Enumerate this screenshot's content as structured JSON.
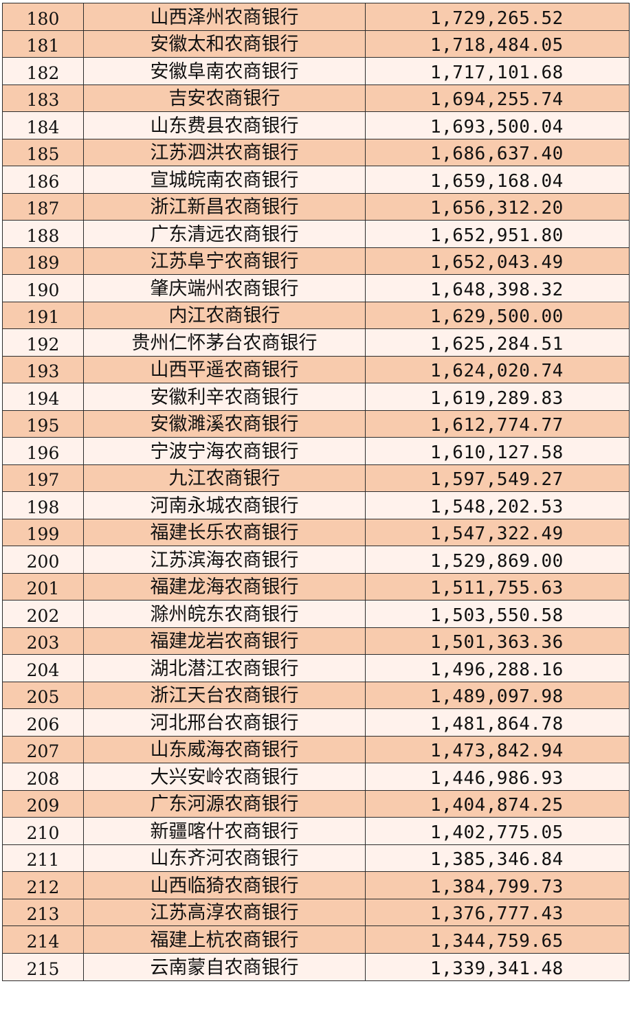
{
  "colors": {
    "highlight": "#f8cbad",
    "plain": "#fff2ec",
    "border": "#2b2b2b",
    "text": "#111111"
  },
  "rows": [
    {
      "rank": "180",
      "bank": "山西泽州农商银行",
      "amount": "1,729,265.52",
      "fill": "highlight"
    },
    {
      "rank": "181",
      "bank": "安徽太和农商银行",
      "amount": "1,718,484.05",
      "fill": "highlight"
    },
    {
      "rank": "182",
      "bank": "安徽阜南农商银行",
      "amount": "1,717,101.68",
      "fill": "plain"
    },
    {
      "rank": "183",
      "bank": "吉安农商银行",
      "amount": "1,694,255.74",
      "fill": "highlight"
    },
    {
      "rank": "184",
      "bank": "山东费县农商银行",
      "amount": "1,693,500.04",
      "fill": "plain"
    },
    {
      "rank": "185",
      "bank": "江苏泗洪农商银行",
      "amount": "1,686,637.40",
      "fill": "highlight"
    },
    {
      "rank": "186",
      "bank": "宣城皖南农商银行",
      "amount": "1,659,168.04",
      "fill": "plain"
    },
    {
      "rank": "187",
      "bank": "浙江新昌农商银行",
      "amount": "1,656,312.20",
      "fill": "highlight"
    },
    {
      "rank": "188",
      "bank": "广东清远农商银行",
      "amount": "1,652,951.80",
      "fill": "plain"
    },
    {
      "rank": "189",
      "bank": "江苏阜宁农商银行",
      "amount": "1,652,043.49",
      "fill": "highlight"
    },
    {
      "rank": "190",
      "bank": "肇庆端州农商银行",
      "amount": "1,648,398.32",
      "fill": "plain"
    },
    {
      "rank": "191",
      "bank": "内江农商银行",
      "amount": "1,629,500.00",
      "fill": "highlight"
    },
    {
      "rank": "192",
      "bank": "贵州仁怀茅台农商银行",
      "amount": "1,625,284.51",
      "fill": "plain"
    },
    {
      "rank": "193",
      "bank": "山西平遥农商银行",
      "amount": "1,624,020.74",
      "fill": "highlight"
    },
    {
      "rank": "194",
      "bank": "安徽利辛农商银行",
      "amount": "1,619,289.83",
      "fill": "plain"
    },
    {
      "rank": "195",
      "bank": "安徽濉溪农商银行",
      "amount": "1,612,774.77",
      "fill": "highlight"
    },
    {
      "rank": "196",
      "bank": "宁波宁海农商银行",
      "amount": "1,610,127.58",
      "fill": "plain"
    },
    {
      "rank": "197",
      "bank": "九江农商银行",
      "amount": "1,597,549.27",
      "fill": "highlight"
    },
    {
      "rank": "198",
      "bank": "河南永城农商银行",
      "amount": "1,548,202.53",
      "fill": "plain"
    },
    {
      "rank": "199",
      "bank": "福建长乐农商银行",
      "amount": "1,547,322.49",
      "fill": "highlight"
    },
    {
      "rank": "200",
      "bank": "江苏滨海农商银行",
      "amount": "1,529,869.00",
      "fill": "plain"
    },
    {
      "rank": "201",
      "bank": "福建龙海农商银行",
      "amount": "1,511,755.63",
      "fill": "highlight"
    },
    {
      "rank": "202",
      "bank": "滁州皖东农商银行",
      "amount": "1,503,550.58",
      "fill": "plain"
    },
    {
      "rank": "203",
      "bank": "福建龙岩农商银行",
      "amount": "1,501,363.36",
      "fill": "highlight"
    },
    {
      "rank": "204",
      "bank": "湖北潜江农商银行",
      "amount": "1,496,288.16",
      "fill": "plain"
    },
    {
      "rank": "205",
      "bank": "浙江天台农商银行",
      "amount": "1,489,097.98",
      "fill": "highlight"
    },
    {
      "rank": "206",
      "bank": "河北邢台农商银行",
      "amount": "1,481,864.78",
      "fill": "plain"
    },
    {
      "rank": "207",
      "bank": "山东威海农商银行",
      "amount": "1,473,842.94",
      "fill": "highlight"
    },
    {
      "rank": "208",
      "bank": "大兴安岭农商银行",
      "amount": "1,446,986.93",
      "fill": "plain"
    },
    {
      "rank": "209",
      "bank": "广东河源农商银行",
      "amount": "1,404,874.25",
      "fill": "highlight"
    },
    {
      "rank": "210",
      "bank": "新疆喀什农商银行",
      "amount": "1,402,775.05",
      "fill": "plain"
    },
    {
      "rank": "211",
      "bank": "山东齐河农商银行",
      "amount": "1,385,346.84",
      "fill": "plain"
    },
    {
      "rank": "212",
      "bank": "山西临猗农商银行",
      "amount": "1,384,799.73",
      "fill": "highlight"
    },
    {
      "rank": "213",
      "bank": "江苏高淳农商银行",
      "amount": "1,376,777.43",
      "fill": "highlight"
    },
    {
      "rank": "214",
      "bank": "福建上杭农商银行",
      "amount": "1,344,759.65",
      "fill": "highlight"
    },
    {
      "rank": "215",
      "bank": "云南蒙自农商银行",
      "amount": "1,339,341.48",
      "fill": "plain"
    }
  ]
}
